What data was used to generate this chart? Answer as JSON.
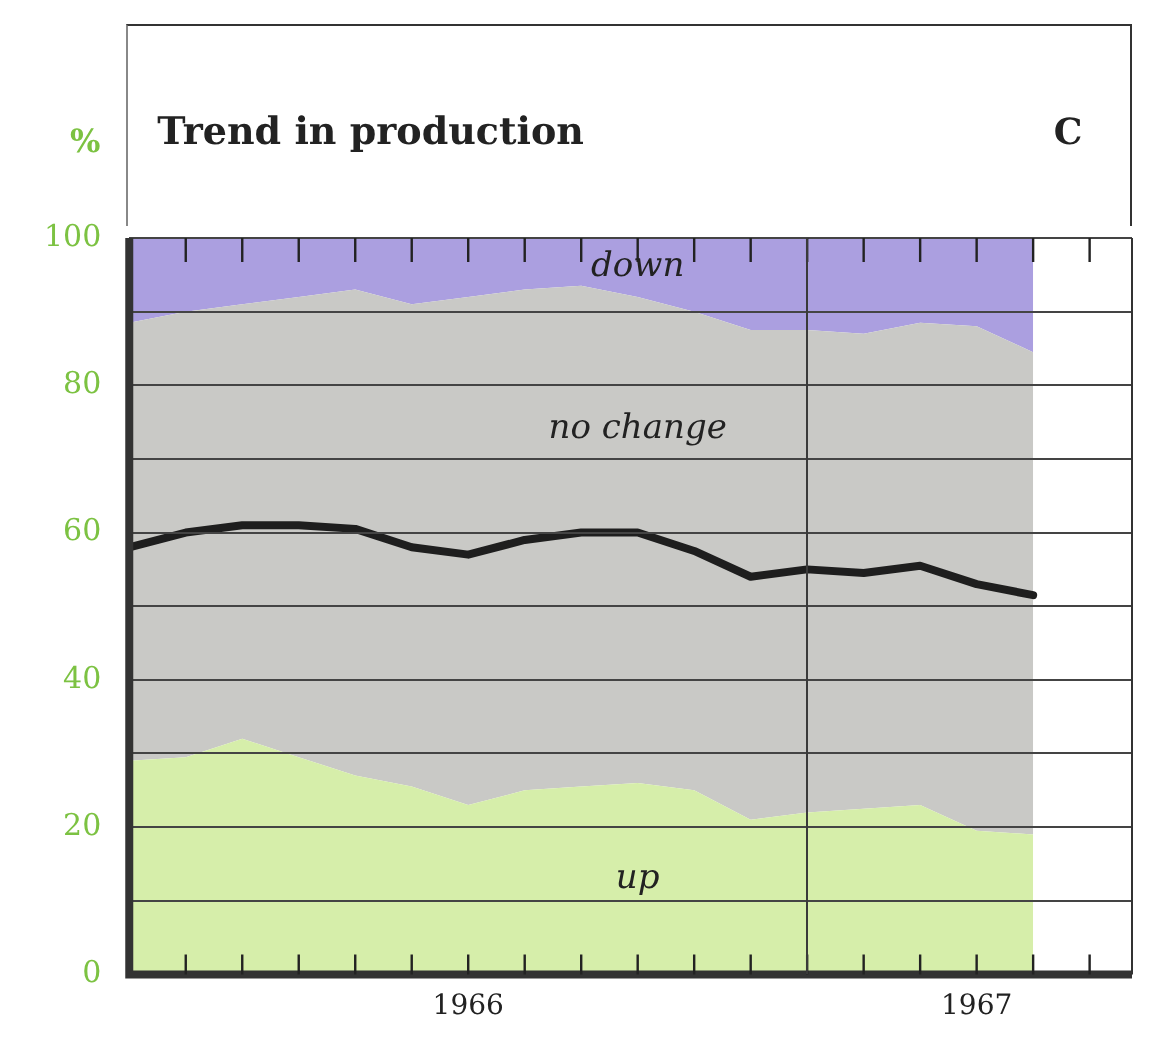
{
  "chart_data": {
    "type": "area",
    "title": "Trend in production",
    "ylabel": "%",
    "annotations": [
      "C"
    ],
    "stacked": true,
    "categories": [
      null,
      null,
      null,
      null,
      null,
      null,
      "1966",
      null,
      null,
      null,
      null,
      null,
      null,
      null,
      null,
      "1967",
      null
    ],
    "series": [
      {
        "name": "up",
        "color": "#d6eeaa",
        "values": [
          29,
          29.5,
          32,
          29.5,
          27,
          25.5,
          23,
          25,
          25.5,
          26,
          25,
          21,
          22,
          22.5,
          23,
          19.5,
          19
        ]
      },
      {
        "name": "no change",
        "color": "#c9c9c6",
        "values": [
          59.5,
          60.5,
          59,
          62.5,
          66,
          65.5,
          69,
          68,
          68,
          66,
          65,
          66.5,
          65.5,
          64.5,
          65.5,
          68.5,
          65.5
        ]
      },
      {
        "name": "down",
        "color": "#ab9fe0",
        "values": [
          11.5,
          10,
          9,
          8,
          7,
          9,
          8,
          7,
          6.5,
          8,
          10,
          12.5,
          12.5,
          13,
          11.5,
          12,
          15.5
        ]
      },
      {
        "type": "line",
        "color": "#1e1e1e",
        "values": [
          58,
          60,
          61,
          61,
          60.5,
          58,
          57,
          59,
          60,
          60,
          57.5,
          54,
          55,
          54.5,
          55.5,
          53,
          51.5
        ]
      }
    ],
    "ylim": [
      0,
      100
    ],
    "yticks": [
      0,
      {
        "value": 10,
        "label": null
      },
      20,
      {
        "value": 30,
        "label": null
      },
      40,
      {
        "value": 50,
        "label": null
      },
      60,
      {
        "value": 70,
        "label": null
      },
      80,
      {
        "value": 90,
        "label": null
      },
      100
    ],
    "grid": "y",
    "legend": false
  }
}
